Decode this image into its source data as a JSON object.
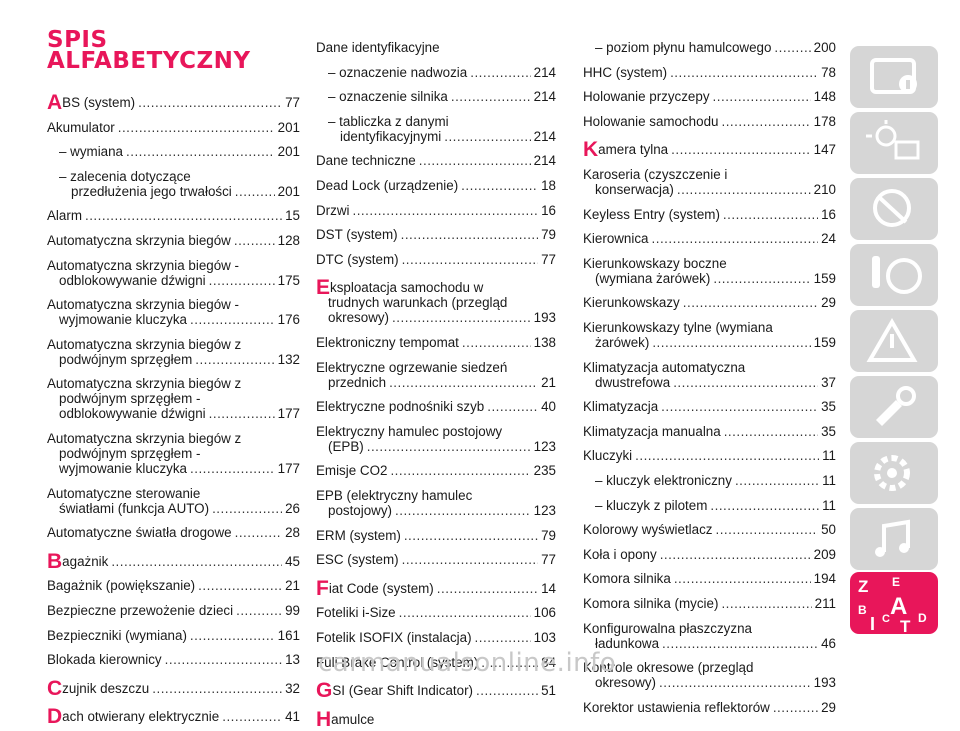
{
  "title": {
    "line1": "SPIS",
    "line2": "ALFABETYCZNY"
  },
  "col1": [
    {
      "cap": "A",
      "text": "BS (system)",
      "page": "77"
    },
    {
      "text": "Akumulator",
      "page": "201"
    },
    {
      "text": "– wymiana",
      "page": "201"
    },
    {
      "text": "– zalecenia dotyczące",
      "cont": "przedłużenia jego trwałości",
      "page": "201"
    },
    {
      "text": "Alarm",
      "page": "15"
    },
    {
      "text": "Automatyczna skrzynia biegów",
      "page": "128"
    },
    {
      "text": "Automatyczna skrzynia biegów -",
      "cont": "odblokowywanie dźwigni",
      "page": "175"
    },
    {
      "text": "Automatyczna skrzynia biegów -",
      "cont": "wyjmowanie kluczyka",
      "page": "176"
    },
    {
      "text": "Automatyczna skrzynia biegów z",
      "cont": "podwójnym sprzęgłem",
      "page": "132"
    },
    {
      "text": "Automatyczna skrzynia biegów z",
      "cont": "podwójnym sprzęgłem -",
      "cont2": "odblokowywanie dźwigni",
      "page": "177"
    },
    {
      "text": "Automatyczna skrzynia biegów z",
      "cont": "podwójnym sprzęgłem -",
      "cont2": "wyjmowanie kluczyka",
      "page": "177"
    },
    {
      "text": "Automatyczne sterowanie",
      "cont": "światłami (funkcja AUTO)",
      "page": "26"
    },
    {
      "text": "Automatyczne światła drogowe",
      "page": "28"
    },
    {
      "cap": "B",
      "text": "agażnik",
      "page": "45"
    },
    {
      "text": "Bagażnik (powiększanie)",
      "page": "21"
    },
    {
      "text": "Bezpieczne przewożenie dzieci",
      "page": "99"
    },
    {
      "text": "Bezpieczniki (wymiana)",
      "page": "161"
    },
    {
      "text": "Blokada kierownicy",
      "page": "13"
    },
    {
      "cap": "C",
      "text": "zujnik deszczu",
      "page": "32"
    },
    {
      "cap": "D",
      "text": "ach otwierany elektrycznie",
      "page": "41"
    }
  ],
  "col2": [
    {
      "text": "Dane identyfikacyjne"
    },
    {
      "text": "– oznaczenie nadwozia",
      "page": "214"
    },
    {
      "text": "– oznaczenie silnika",
      "page": "214"
    },
    {
      "text": "– tabliczka z danymi",
      "cont": "identyfikacyjnymi",
      "page": "214"
    },
    {
      "text": "Dane techniczne",
      "page": "214"
    },
    {
      "text": "Dead Lock (urządzenie)",
      "page": "18"
    },
    {
      "text": "Drzwi",
      "page": "16"
    },
    {
      "text": "DST (system)",
      "page": "79"
    },
    {
      "text": "DTC (system)",
      "page": "77"
    },
    {
      "cap": "E",
      "text": "ksploatacja samochodu w",
      "cont": "trudnych warunkach (przegląd",
      "cont2": "okresowy)",
      "page": "193"
    },
    {
      "text": "Elektroniczny tempomat",
      "page": "138"
    },
    {
      "text": "Elektryczne ogrzewanie siedzeń",
      "cont": "przednich",
      "page": "21"
    },
    {
      "text": "Elektryczne podnośniki szyb",
      "page": "40"
    },
    {
      "text": "Elektryczny hamulec postojowy",
      "cont": "(EPB)",
      "page": "123"
    },
    {
      "text": "Emisje CO2",
      "page": "235"
    },
    {
      "text": "EPB (elektryczny hamulec",
      "cont": "postojowy)",
      "page": "123"
    },
    {
      "text": "ERM (system)",
      "page": "79"
    },
    {
      "text": "ESC (system)",
      "page": "77"
    },
    {
      "cap": "F",
      "text": "iat Code (system)",
      "page": "14"
    },
    {
      "text": "Foteliki i-Size",
      "page": "106"
    },
    {
      "text": "Fotelik ISOFIX (instalacja)",
      "page": "103"
    },
    {
      "text": "Full Brake Control (system)",
      "page": "84"
    },
    {
      "cap": "G",
      "text": "SI (Gear Shift Indicator)",
      "page": "51"
    },
    {
      "cap": "H",
      "text": "amulce"
    }
  ],
  "col3": [
    {
      "text": "– poziom płynu hamulcowego",
      "page": "200"
    },
    {
      "text": "HHC (system)",
      "page": "78"
    },
    {
      "text": "Holowanie przyczepy",
      "page": "148"
    },
    {
      "text": "Holowanie samochodu",
      "page": "178"
    },
    {
      "cap": "K",
      "text": "amera tylna",
      "page": "147"
    },
    {
      "text": "Karoseria (czyszczenie i",
      "cont": "konserwacja)",
      "page": "210"
    },
    {
      "text": "Keyless Entry (system)",
      "page": "16"
    },
    {
      "text": "Kierownica",
      "page": "24"
    },
    {
      "text": "Kierunkowskazy boczne",
      "cont": "(wymiana żarówek)",
      "page": "159"
    },
    {
      "text": "Kierunkowskazy",
      "page": "29"
    },
    {
      "text": "Kierunkowskazy tylne (wymiana",
      "cont": "żarówek)",
      "page": "159"
    },
    {
      "text": "Klimatyzacja automatyczna",
      "cont": "dwustrefowa",
      "page": "37"
    },
    {
      "text": "Klimatyzacja",
      "page": "35"
    },
    {
      "text": "Klimatyzacja manualna",
      "page": "35"
    },
    {
      "text": "Kluczyki",
      "page": "11"
    },
    {
      "text": "– kluczyk elektroniczny",
      "page": "11"
    },
    {
      "text": "– kluczyk z pilotem",
      "page": "11"
    },
    {
      "text": "Kolorowy wyświetlacz",
      "page": "50"
    },
    {
      "text": "Koła i opony",
      "page": "209"
    },
    {
      "text": "Komora silnika",
      "page": "194"
    },
    {
      "text": "Komora silnika (mycie)",
      "page": "211"
    },
    {
      "text": "Konfigurowalna płaszczyzna",
      "cont": "ładunkowa",
      "page": "46"
    },
    {
      "text": "Kontrole okresowe (przegląd",
      "cont": "okresowy)",
      "page": "193"
    },
    {
      "text": "Korektor ustawienia reflektorów",
      "page": "29"
    }
  ],
  "sidebar": {
    "tabs": [
      "car-info-icon",
      "warning-lights-icon",
      "seatbelt-airbag-icon",
      "key-steering-icon",
      "breakdown-icon",
      "maintenance-icon",
      "technical-data-icon",
      "multimedia-icon",
      "index-icon"
    ],
    "index_letters": [
      "Z",
      "E",
      "B",
      "A",
      "I",
      "C",
      "T",
      "D"
    ],
    "inactive_color": "#d4d4d4",
    "active_color": "#e8165a"
  },
  "watermark": "carmanualsonline.info"
}
